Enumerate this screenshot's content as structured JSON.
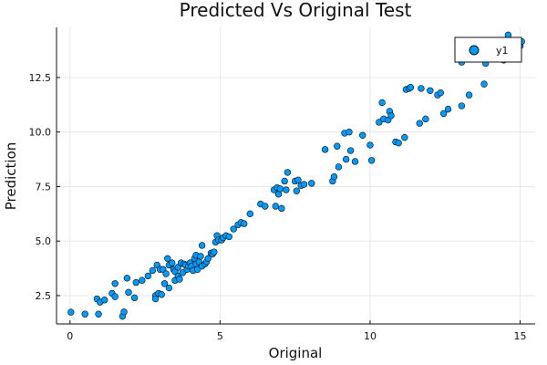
{
  "chart_data": {
    "type": "scatter",
    "title": "Predicted Vs Original Test",
    "xlabel": "Original",
    "ylabel": "Prediction",
    "xlim": [
      -0.45,
      15.5
    ],
    "ylim": [
      1.2,
      14.8
    ],
    "xticks": [
      0,
      5,
      10,
      15
    ],
    "xtick_labels": [
      "0",
      "5",
      "10",
      "15"
    ],
    "yticks": [
      2.5,
      5.0,
      7.5,
      10.0,
      12.5
    ],
    "ytick_labels": [
      "2.5",
      "5.0",
      "7.5",
      "10.0",
      "12.5"
    ],
    "grid": true,
    "legend_position": "top-right",
    "series": [
      {
        "name": "y1",
        "color": "#009AFA",
        "points": [
          [
            0.03,
            1.74
          ],
          [
            0.5,
            1.65
          ],
          [
            0.9,
            2.35
          ],
          [
            0.95,
            1.65
          ],
          [
            1.0,
            2.2
          ],
          [
            1.15,
            2.3
          ],
          [
            1.4,
            2.6
          ],
          [
            1.5,
            2.45
          ],
          [
            1.5,
            3.05
          ],
          [
            1.75,
            1.55
          ],
          [
            1.8,
            1.75
          ],
          [
            1.9,
            3.3
          ],
          [
            1.95,
            2.65
          ],
          [
            2.15,
            2.4
          ],
          [
            2.2,
            3.1
          ],
          [
            2.4,
            3.2
          ],
          [
            2.6,
            3.4
          ],
          [
            2.75,
            3.65
          ],
          [
            2.85,
            2.5
          ],
          [
            2.85,
            2.35
          ],
          [
            2.9,
            3.9
          ],
          [
            2.95,
            2.6
          ],
          [
            3.0,
            3.7
          ],
          [
            3.05,
            2.55
          ],
          [
            3.1,
            3.7
          ],
          [
            3.15,
            3.05
          ],
          [
            3.2,
            3.5
          ],
          [
            3.25,
            4.2
          ],
          [
            3.3,
            2.85
          ],
          [
            3.3,
            3.9
          ],
          [
            3.4,
            4.0
          ],
          [
            3.45,
            3.7
          ],
          [
            3.5,
            3.2
          ],
          [
            3.5,
            3.6
          ],
          [
            3.6,
            3.4
          ],
          [
            3.6,
            3.8
          ],
          [
            3.65,
            3.25
          ],
          [
            3.7,
            4.0
          ],
          [
            3.75,
            3.55
          ],
          [
            3.8,
            3.95
          ],
          [
            3.85,
            3.9
          ],
          [
            3.9,
            3.7
          ],
          [
            3.95,
            3.85
          ],
          [
            4.0,
            4.0
          ],
          [
            4.05,
            3.85
          ],
          [
            4.1,
            3.65
          ],
          [
            4.15,
            4.2
          ],
          [
            4.2,
            3.95
          ],
          [
            4.2,
            4.35
          ],
          [
            4.25,
            3.7
          ],
          [
            4.3,
            4.05
          ],
          [
            4.35,
            4.3
          ],
          [
            4.4,
            3.85
          ],
          [
            4.4,
            4.8
          ],
          [
            4.5,
            3.95
          ],
          [
            4.55,
            4.05
          ],
          [
            4.6,
            4.2
          ],
          [
            4.7,
            4.45
          ],
          [
            4.75,
            4.4
          ],
          [
            4.8,
            4.5
          ],
          [
            4.85,
            4.95
          ],
          [
            4.9,
            5.25
          ],
          [
            4.95,
            5.05
          ],
          [
            5.05,
            5.05
          ],
          [
            5.1,
            5.15
          ],
          [
            5.2,
            5.25
          ],
          [
            5.3,
            5.2
          ],
          [
            5.45,
            5.55
          ],
          [
            5.6,
            5.75
          ],
          [
            5.7,
            5.85
          ],
          [
            5.8,
            5.8
          ],
          [
            6.0,
            6.25
          ],
          [
            6.35,
            6.7
          ],
          [
            6.5,
            6.6
          ],
          [
            6.8,
            7.35
          ],
          [
            6.85,
            6.6
          ],
          [
            6.9,
            7.45
          ],
          [
            6.95,
            7.15
          ],
          [
            7.0,
            7.4
          ],
          [
            7.05,
            6.5
          ],
          [
            7.15,
            7.75
          ],
          [
            7.2,
            7.35
          ],
          [
            7.25,
            8.15
          ],
          [
            7.5,
            7.75
          ],
          [
            7.55,
            7.3
          ],
          [
            7.6,
            7.8
          ],
          [
            7.7,
            7.55
          ],
          [
            7.8,
            7.6
          ],
          [
            8.05,
            7.65
          ],
          [
            8.5,
            9.2
          ],
          [
            8.75,
            7.75
          ],
          [
            8.8,
            7.95
          ],
          [
            8.9,
            9.35
          ],
          [
            8.95,
            8.4
          ],
          [
            9.15,
            9.95
          ],
          [
            9.2,
            8.75
          ],
          [
            9.3,
            10.0
          ],
          [
            9.35,
            9.15
          ],
          [
            9.5,
            8.65
          ],
          [
            9.75,
            9.85
          ],
          [
            10.0,
            9.4
          ],
          [
            10.05,
            8.7
          ],
          [
            10.3,
            10.45
          ],
          [
            10.4,
            11.35
          ],
          [
            10.45,
            10.6
          ],
          [
            10.6,
            10.55
          ],
          [
            10.65,
            10.95
          ],
          [
            10.7,
            10.75
          ],
          [
            10.85,
            9.55
          ],
          [
            10.95,
            9.5
          ],
          [
            11.15,
            9.75
          ],
          [
            11.2,
            11.95
          ],
          [
            11.3,
            12.0
          ],
          [
            11.35,
            12.05
          ],
          [
            11.65,
            10.4
          ],
          [
            11.7,
            12.0
          ],
          [
            11.85,
            10.6
          ],
          [
            12.0,
            11.9
          ],
          [
            12.25,
            11.7
          ],
          [
            12.35,
            11.8
          ],
          [
            12.45,
            10.85
          ],
          [
            12.6,
            11.05
          ],
          [
            13.05,
            11.2
          ],
          [
            13.05,
            13.2
          ],
          [
            13.3,
            11.7
          ],
          [
            13.8,
            12.2
          ],
          [
            13.85,
            13.15
          ],
          [
            14.45,
            13.3
          ],
          [
            14.6,
            14.45
          ],
          [
            14.85,
            14.1
          ],
          [
            15.0,
            13.95
          ],
          [
            15.05,
            14.15
          ]
        ]
      }
    ]
  }
}
